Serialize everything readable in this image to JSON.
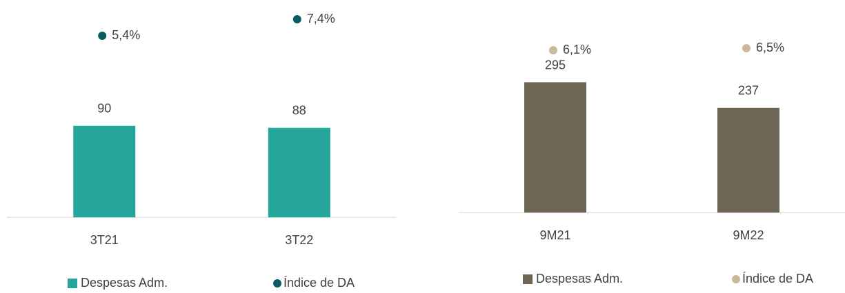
{
  "chart_data": [
    {
      "type": "bar",
      "categories": [
        "3T21",
        "3T22"
      ],
      "series": [
        {
          "name": "Despesas Adm.",
          "color": "#26a69a",
          "values": [
            90,
            88
          ]
        },
        {
          "name": "Índice de DA",
          "color": "#0d5c63",
          "axis": "y2",
          "values": [
            5.4,
            7.4
          ],
          "value_labels": [
            "5,4%",
            "7,4%"
          ]
        }
      ],
      "ylim": [
        0,
        200
      ],
      "y2lim": [
        -16.6,
        8.07
      ]
    },
    {
      "type": "bar",
      "categories": [
        "9M21",
        "9M22"
      ],
      "series": [
        {
          "name": "Despesas Adm.",
          "color": "#6e6555",
          "values": [
            295,
            237
          ]
        },
        {
          "name": "Índice de DA",
          "color": "#c8b99a",
          "axis": "y2",
          "values": [
            6.1,
            6.5
          ],
          "value_labels": [
            "6,1%",
            "6,5%"
          ]
        }
      ],
      "ylim": [
        0,
        450
      ],
      "y2lim": [
        -25.4,
        13.2
      ]
    }
  ]
}
